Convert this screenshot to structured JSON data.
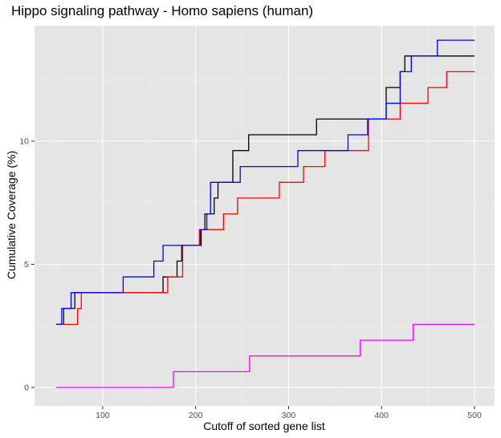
{
  "chart_data": {
    "type": "line",
    "step": true,
    "title": "Hippo signaling pathway - Homo sapiens (human)",
    "xlabel": "Cutoff of sorted gene list",
    "ylabel": "Cumulative Coverage (%)",
    "xlim": [
      50,
      500
    ],
    "ylim": [
      0,
      14.06
    ],
    "x_ticks": [
      100,
      200,
      300,
      400,
      500
    ],
    "y_ticks": [
      0,
      5,
      10
    ],
    "grid": true,
    "background": "#e5e5e5",
    "series": [
      {
        "color": "#000000",
        "x": [
          50,
          58,
          70,
          75,
          165,
          175,
          180,
          185,
          200,
          206,
          210,
          217,
          220,
          224,
          227,
          240,
          257,
          316,
          330,
          400,
          405,
          419,
          420,
          425,
          500
        ],
        "y": [
          2.56,
          3.21,
          3.85,
          3.85,
          4.49,
          4.49,
          5.13,
          5.77,
          5.77,
          6.41,
          7.05,
          7.05,
          7.69,
          8.33,
          8.33,
          9.62,
          10.26,
          10.26,
          10.9,
          10.9,
          12.18,
          12.18,
          12.82,
          13.46,
          13.46
        ]
      },
      {
        "color": "#ff0000",
        "x": [
          50,
          73,
          77,
          100,
          170,
          180,
          186,
          200,
          204,
          215,
          230,
          234,
          245,
          280,
          290,
          310,
          316,
          322,
          339,
          366,
          386,
          420,
          450,
          470,
          500
        ],
        "y": [
          2.56,
          3.21,
          3.85,
          3.85,
          4.49,
          4.49,
          5.77,
          5.77,
          6.41,
          6.41,
          7.05,
          7.05,
          7.69,
          7.69,
          8.33,
          8.33,
          8.97,
          8.97,
          9.62,
          9.62,
          10.9,
          11.54,
          12.18,
          12.82,
          12.82
        ]
      },
      {
        "color": "#0000ff",
        "x": [
          50,
          56,
          60,
          66,
          122,
          155,
          165,
          190,
          205,
          212,
          216,
          222,
          225,
          227,
          230,
          238,
          248,
          260,
          310,
          364,
          385,
          405,
          420,
          432,
          460,
          500
        ],
        "y": [
          2.56,
          3.21,
          3.21,
          3.85,
          4.49,
          5.13,
          5.77,
          5.77,
          6.41,
          7.05,
          8.33,
          8.33,
          8.33,
          8.33,
          8.33,
          8.33,
          8.97,
          8.97,
          9.62,
          10.26,
          10.9,
          11.54,
          12.82,
          13.46,
          14.1,
          14.1
        ]
      },
      {
        "color": "#ff00ff",
        "x": [
          50,
          176,
          258,
          377,
          434,
          500
        ],
        "y": [
          0,
          0.64,
          1.28,
          1.92,
          2.56,
          2.56
        ]
      }
    ]
  }
}
